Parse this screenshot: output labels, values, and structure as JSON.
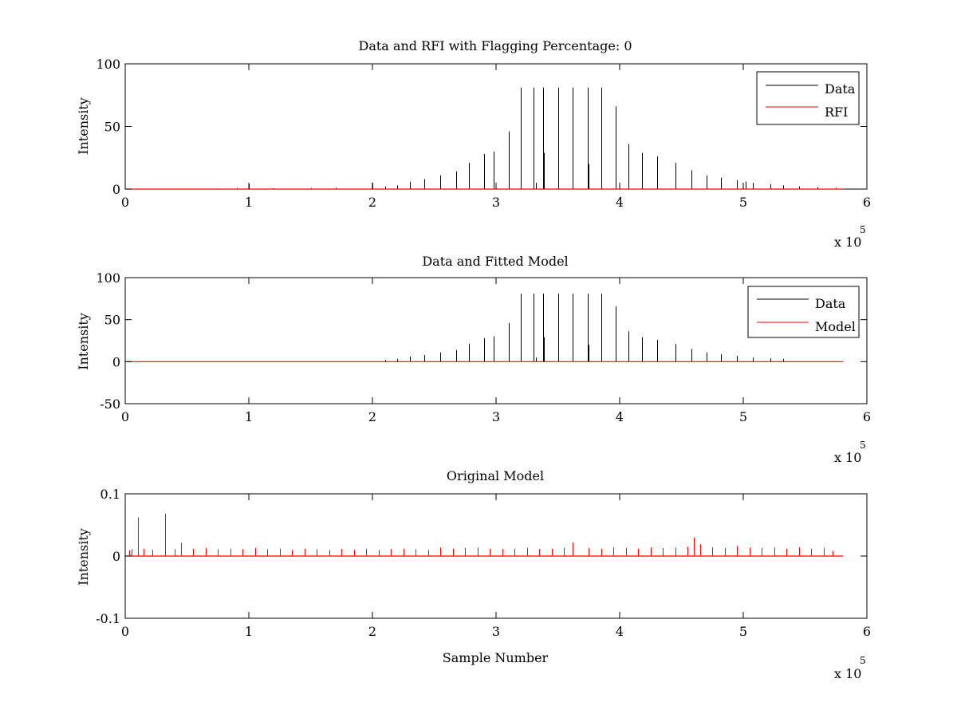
{
  "chart_data": [
    {
      "type": "line",
      "title": "Data and RFI with Flagging Percentage: 0",
      "xlabel": "",
      "ylabel": "Intensity",
      "xlim": [
        0,
        6
      ],
      "ylim": [
        0,
        100
      ],
      "x_multiplier": "x 10",
      "x_exponent": "5",
      "xticks": [
        "0",
        "1",
        "2",
        "3",
        "4",
        "5",
        "6"
      ],
      "yticks": [
        "0",
        "50",
        "100"
      ],
      "legend": {
        "position": "top-right",
        "entries": [
          "Data",
          "RFI"
        ]
      },
      "series": [
        {
          "name": "Data",
          "color": "#000000",
          "style": "spikes",
          "x": [
            0.25,
            0.5,
            0.75,
            0.9,
            1.0,
            1.2,
            1.5,
            1.7,
            2.0,
            2.1,
            2.2,
            2.3,
            2.42,
            2.55,
            2.68,
            2.78,
            2.9,
            2.98,
            3.1,
            3.2,
            3.3,
            3.38,
            3.5,
            3.62,
            3.74,
            3.85,
            3.97,
            4.07,
            4.18,
            4.3,
            4.45,
            4.58,
            4.7,
            4.82,
            4.95,
            5.02,
            5.08,
            5.22,
            5.32,
            5.45,
            5.6,
            5.75
          ],
          "values": [
            0.3,
            0.3,
            0.5,
            0.8,
            4,
            0.6,
            0.8,
            1,
            5,
            2,
            3,
            6,
            8,
            11,
            14,
            21,
            28,
            30,
            46,
            81,
            81,
            81,
            81,
            81,
            81,
            81,
            66,
            36,
            29,
            26,
            21,
            15,
            11,
            9,
            7,
            6,
            5,
            4,
            3,
            2,
            1.5,
            1
          ]
        },
        {
          "name": "Data",
          "color": "#000000",
          "style": "spikes",
          "x": [
            2.98,
            3.32,
            3.39,
            3.75
          ],
          "values": [
            12,
            5,
            29,
            20
          ]
        },
        {
          "name": "RFI",
          "color": "#ff0000",
          "style": "line",
          "x": [
            0,
            5.81
          ],
          "values": [
            0,
            0
          ]
        }
      ]
    },
    {
      "type": "line",
      "title": "Data and Fitted Model",
      "xlabel": "",
      "ylabel": "Intensity",
      "xlim": [
        0,
        6
      ],
      "ylim": [
        -50,
        100
      ],
      "x_multiplier": "x 10",
      "x_exponent": "5",
      "xticks": [
        "0",
        "1",
        "2",
        "3",
        "4",
        "5",
        "6"
      ],
      "yticks": [
        "-50",
        "0",
        "50",
        "100"
      ],
      "legend": {
        "position": "top-right",
        "entries": [
          "Data",
          "Model"
        ]
      },
      "series": [
        {
          "name": "Data",
          "color": "#000000",
          "style": "spikes",
          "x": [
            2.1,
            2.2,
            2.3,
            2.42,
            2.55,
            2.68,
            2.78,
            2.9,
            2.98,
            3.1,
            3.2,
            3.3,
            3.38,
            3.5,
            3.62,
            3.74,
            3.85,
            3.97,
            4.07,
            4.18,
            4.3,
            4.45,
            4.58,
            4.7,
            4.82,
            4.95,
            5.08,
            5.22,
            5.32
          ],
          "values": [
            2,
            3,
            6,
            8,
            11,
            14,
            21,
            28,
            30,
            46,
            81,
            81,
            81,
            81,
            81,
            81,
            81,
            66,
            36,
            29,
            26,
            21,
            15,
            11,
            9,
            7,
            5,
            4,
            3
          ]
        },
        {
          "name": "Data",
          "color": "#000000",
          "style": "spikes",
          "x": [
            2.98,
            3.32,
            3.39,
            3.75
          ],
          "values": [
            12,
            5,
            29,
            20
          ]
        },
        {
          "name": "Model",
          "color": "#ff0000",
          "style": "line",
          "x": [
            0,
            5.81
          ],
          "values": [
            0,
            0
          ]
        }
      ]
    },
    {
      "type": "line",
      "title": "Original Model",
      "xlabel": "Sample Number",
      "ylabel": "Intensity",
      "xlim": [
        0,
        6
      ],
      "ylim": [
        -0.1,
        0.1
      ],
      "x_multiplier": "x 10",
      "x_exponent": "5",
      "xticks": [
        "0",
        "1",
        "2",
        "3",
        "4",
        "5",
        "6"
      ],
      "yticks": [
        "-0.1",
        "0",
        "0.1"
      ],
      "series": [
        {
          "name": "Model",
          "color": "#ff0000",
          "style": "spikes",
          "x": [
            0.03,
            0.05,
            0.1,
            0.15,
            0.22,
            0.32,
            0.4,
            0.45,
            0.55,
            0.65,
            0.75,
            0.85,
            0.95,
            1.05,
            1.15,
            1.25,
            1.35,
            1.45,
            1.55,
            1.65,
            1.75,
            1.85,
            1.95,
            2.05,
            2.15,
            2.25,
            2.35,
            2.45,
            2.55,
            2.65,
            2.75,
            2.85,
            2.95,
            3.05,
            3.15,
            3.25,
            3.35,
            3.45,
            3.55,
            3.62,
            3.75,
            3.85,
            3.95,
            4.05,
            4.15,
            4.25,
            4.35,
            4.45,
            4.55,
            4.6,
            4.65,
            4.75,
            4.85,
            4.95,
            5.05,
            5.15,
            5.25,
            5.35,
            5.45,
            5.55,
            5.65,
            5.72
          ],
          "values": [
            0.009,
            0.011,
            0.062,
            0.012,
            0.01,
            0.068,
            0.011,
            0.021,
            0.012,
            0.013,
            0.011,
            0.012,
            0.011,
            0.013,
            0.011,
            0.012,
            0.01,
            0.012,
            0.011,
            0.01,
            0.011,
            0.01,
            0.012,
            0.01,
            0.011,
            0.012,
            0.011,
            0.01,
            0.014,
            0.012,
            0.013,
            0.014,
            0.012,
            0.011,
            0.012,
            0.013,
            0.011,
            0.012,
            0.013,
            0.022,
            0.013,
            0.012,
            0.014,
            0.013,
            0.012,
            0.014,
            0.013,
            0.014,
            0.015,
            0.03,
            0.019,
            0.014,
            0.013,
            0.016,
            0.014,
            0.013,
            0.014,
            0.012,
            0.014,
            0.012,
            0.013,
            0.008
          ]
        },
        {
          "name": "Model",
          "color": "#ff0000",
          "style": "line",
          "x": [
            0,
            5.81
          ],
          "values": [
            0,
            0
          ]
        }
      ]
    }
  ]
}
